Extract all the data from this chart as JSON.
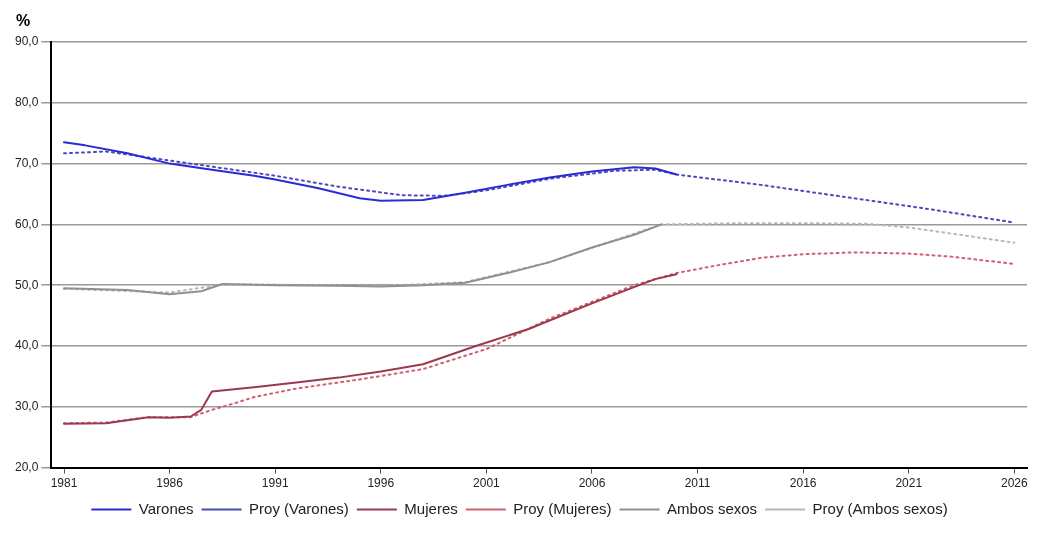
{
  "chart_data": {
    "type": "line",
    "ylabel": "%",
    "xlim": [
      1980.4,
      2026.6
    ],
    "ylim": [
      20,
      90
    ],
    "xticks": [
      1981,
      1986,
      1991,
      1996,
      2001,
      2006,
      2011,
      2016,
      2021,
      2026
    ],
    "yticks": [
      {
        "value": 20,
        "label": "20,0"
      },
      {
        "value": 30,
        "label": "30,0"
      },
      {
        "value": 40,
        "label": "40,0"
      },
      {
        "value": 50,
        "label": "50,0"
      },
      {
        "value": 60,
        "label": "60,0"
      },
      {
        "value": 70,
        "label": "70,0"
      },
      {
        "value": 80,
        "label": "80,0"
      },
      {
        "value": 90,
        "label": "90,0"
      }
    ],
    "grid": "y",
    "legend": "bottom",
    "marker": "none",
    "series": [
      {
        "name": "Varones",
        "color": "#2b2bd6",
        "line_style": "solid",
        "x": [
          1981,
          1982,
          1984,
          1986,
          1988,
          1990,
          1991,
          1993,
          1995,
          1996,
          1998,
          2000,
          2002,
          2004,
          2006,
          2008,
          2009,
          2010
        ],
        "values": [
          73.5,
          73.0,
          71.7,
          70.0,
          69.0,
          68.0,
          67.4,
          66.0,
          64.3,
          63.9,
          64.0,
          65.2,
          66.5,
          67.7,
          68.7,
          69.4,
          69.2,
          68.2
        ]
      },
      {
        "name": "Proy (Varones)",
        "color": "#4a4ab8",
        "line_style": "dotted",
        "x": [
          1981,
          1983,
          1985,
          1988,
          1991,
          1994,
          1997,
          1999,
          2001,
          2004,
          2007,
          2009,
          2010,
          2014,
          2018,
          2022,
          2026
        ],
        "values": [
          71.7,
          72.0,
          71.0,
          69.5,
          68.0,
          66.2,
          64.8,
          64.7,
          65.6,
          67.5,
          68.8,
          69.0,
          68.2,
          66.5,
          64.5,
          62.5,
          60.3
        ]
      },
      {
        "name": "Mujeres",
        "color": "#9b3a4f",
        "line_style": "solid",
        "x": [
          1981,
          1983,
          1985,
          1986,
          1987,
          1987.5,
          1988,
          1990,
          1992,
          1994,
          1996,
          1998,
          2000.5,
          2003,
          2006,
          2008.3,
          2009,
          2010
        ],
        "values": [
          27.2,
          27.3,
          28.3,
          28.2,
          28.4,
          29.5,
          32.5,
          33.2,
          34.0,
          34.8,
          35.8,
          37.0,
          40.0,
          42.8,
          47.0,
          50.1,
          51.0,
          51.8
        ]
      },
      {
        "name": "Proy (Mujeres)",
        "color": "#d06070",
        "line_style": "dotted",
        "x": [
          1981,
          1983,
          1985,
          1987,
          1988,
          1989,
          1990,
          1992,
          1995,
          1998,
          2001,
          2004,
          2008,
          2010,
          2012,
          2014,
          2016,
          2018.5,
          2021,
          2023,
          2026
        ],
        "values": [
          27.3,
          27.4,
          28.3,
          28.3,
          29.5,
          30.5,
          31.6,
          33.0,
          34.5,
          36.2,
          39.5,
          44.5,
          50.0,
          52.0,
          53.3,
          54.5,
          55.1,
          55.4,
          55.2,
          54.7,
          53.5
        ]
      },
      {
        "name": "Ambos sexos",
        "color": "#909090",
        "line_style": "solid",
        "x": [
          1981,
          1984,
          1986,
          1987.5,
          1988.5,
          1991,
          1994,
          1996,
          1998,
          2000,
          2002,
          2004,
          2006,
          2008,
          2009.3
        ],
        "values": [
          49.5,
          49.2,
          48.5,
          49.0,
          50.2,
          50.0,
          49.9,
          49.8,
          50.0,
          50.4,
          52.0,
          53.8,
          56.2,
          58.3,
          60.0
        ]
      },
      {
        "name": "Proy (Ambos sexos)",
        "color": "#b8b8b8",
        "line_style": "dotted",
        "x": [
          1981,
          1986,
          1988.5,
          1991,
          1996,
          2000,
          2004,
          2009.3,
          2013,
          2016,
          2019,
          2021,
          2023,
          2026
        ],
        "values": [
          49.4,
          48.8,
          50.1,
          50.1,
          49.9,
          50.5,
          53.8,
          60.0,
          60.2,
          60.2,
          60.1,
          59.5,
          58.5,
          57.0
        ]
      }
    ]
  }
}
